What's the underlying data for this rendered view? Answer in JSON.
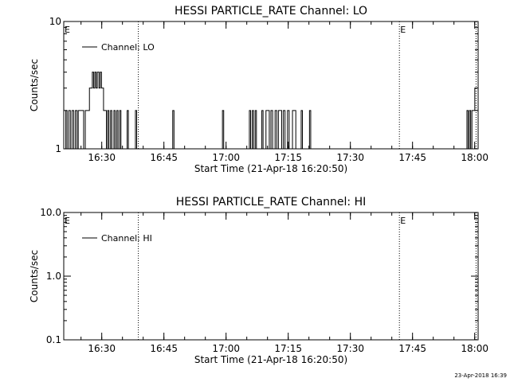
{
  "footer_timestamp": "23-Apr-2018 16:39",
  "chart_data": [
    {
      "type": "line",
      "title": "HESSI PARTICLE_RATE Channel: LO",
      "xlabel": "Start Time (21-Apr-18 16:20:50)",
      "ylabel": "Counts/sec",
      "x_unit": "minutes since 16:20:50",
      "xlim": [
        0,
        100
      ],
      "ylim": [
        1,
        10
      ],
      "yscale": "log",
      "x_ticks": [
        {
          "x": 9.17,
          "label": "16:30"
        },
        {
          "x": 24.17,
          "label": "16:45"
        },
        {
          "x": 39.17,
          "label": "17:00"
        },
        {
          "x": 54.17,
          "label": "17:15"
        },
        {
          "x": 69.17,
          "label": "17:30"
        },
        {
          "x": 84.17,
          "label": "17:45"
        },
        {
          "x": 99.17,
          "label": "18:00"
        }
      ],
      "y_ticks": [
        {
          "y": 1,
          "label": "1"
        },
        {
          "y": 10,
          "label": "10"
        }
      ],
      "event_lines": [
        {
          "x": 18.0,
          "label": "E"
        },
        {
          "x": 81.0,
          "label": "E"
        },
        {
          "x": 99.5,
          "label": ""
        }
      ],
      "axis_label_E": "E",
      "legend": {
        "position": "top-left",
        "entries": [
          "Channel: LO"
        ]
      },
      "series": [
        {
          "name": "Channel: LO",
          "points": [
            [
              0,
              1
            ],
            [
              0.5,
              2
            ],
            [
              0.8,
              1
            ],
            [
              1.2,
              2
            ],
            [
              1.6,
              1
            ],
            [
              2,
              2
            ],
            [
              2.4,
              1
            ],
            [
              2.8,
              2
            ],
            [
              3.2,
              1
            ],
            [
              3.5,
              2
            ],
            [
              4.5,
              2
            ],
            [
              4.8,
              1
            ],
            [
              5.2,
              2
            ],
            [
              6,
              2
            ],
            [
              6.2,
              3
            ],
            [
              6.6,
              3
            ],
            [
              6.9,
              4
            ],
            [
              7.2,
              3
            ],
            [
              7.5,
              4
            ],
            [
              7.8,
              3
            ],
            [
              8.1,
              4
            ],
            [
              8.5,
              3
            ],
            [
              8.8,
              4
            ],
            [
              9.1,
              3
            ],
            [
              9.4,
              3
            ],
            [
              9.6,
              2
            ],
            [
              10,
              2
            ],
            [
              10.3,
              1
            ],
            [
              10.6,
              2
            ],
            [
              10.9,
              1
            ],
            [
              11.3,
              2
            ],
            [
              11.6,
              1
            ],
            [
              12.1,
              2
            ],
            [
              12.4,
              1
            ],
            [
              12.8,
              2
            ],
            [
              13.1,
              1
            ],
            [
              13.5,
              2
            ],
            [
              13.8,
              1
            ],
            [
              15,
              1
            ],
            [
              15.3,
              2
            ],
            [
              15.6,
              1
            ],
            [
              17,
              1
            ],
            [
              17.3,
              2
            ],
            [
              17.6,
              1
            ],
            [
              26,
              1
            ],
            [
              26.3,
              2
            ],
            [
              26.6,
              1
            ],
            [
              38,
              1
            ],
            [
              38.3,
              2
            ],
            [
              38.6,
              1
            ],
            [
              44.5,
              1
            ],
            [
              44.8,
              2
            ],
            [
              45.1,
              1
            ],
            [
              45.5,
              2
            ],
            [
              45.8,
              1
            ],
            [
              46.2,
              2
            ],
            [
              46.5,
              1
            ],
            [
              47.5,
              1
            ],
            [
              47.8,
              2
            ],
            [
              48.1,
              1
            ],
            [
              48.8,
              2
            ],
            [
              49.2,
              2
            ],
            [
              49.6,
              1
            ],
            [
              50,
              2
            ],
            [
              50.4,
              1
            ],
            [
              51,
              2
            ],
            [
              51.4,
              1
            ],
            [
              51.8,
              2
            ],
            [
              52.2,
              2
            ],
            [
              52.6,
              1
            ],
            [
              53,
              2
            ],
            [
              53.4,
              1
            ],
            [
              54,
              2
            ],
            [
              54.4,
              1
            ],
            [
              55.2,
              2
            ],
            [
              55.6,
              2
            ],
            [
              56,
              1
            ],
            [
              57,
              1
            ],
            [
              57.3,
              2
            ],
            [
              57.6,
              1
            ],
            [
              59,
              1
            ],
            [
              59.3,
              2
            ],
            [
              59.6,
              1
            ],
            [
              97,
              1
            ],
            [
              97.3,
              2
            ],
            [
              97.6,
              1
            ],
            [
              97.9,
              2
            ],
            [
              98.2,
              1
            ],
            [
              98.5,
              2
            ],
            [
              98.9,
              2
            ],
            [
              99.2,
              3
            ],
            [
              99.5,
              3
            ]
          ]
        }
      ]
    },
    {
      "type": "line",
      "title": "HESSI PARTICLE_RATE Channel: HI",
      "xlabel": "Start Time (21-Apr-18 16:20:50)",
      "ylabel": "Counts/sec",
      "x_unit": "minutes since 16:20:50",
      "xlim": [
        0,
        100
      ],
      "ylim": [
        0.1,
        10
      ],
      "yscale": "log",
      "x_ticks": [
        {
          "x": 9.17,
          "label": "16:30"
        },
        {
          "x": 24.17,
          "label": "16:45"
        },
        {
          "x": 39.17,
          "label": "17:00"
        },
        {
          "x": 54.17,
          "label": "17:15"
        },
        {
          "x": 69.17,
          "label": "17:30"
        },
        {
          "x": 84.17,
          "label": "17:45"
        },
        {
          "x": 99.17,
          "label": "18:00"
        }
      ],
      "y_ticks": [
        {
          "y": 0.1,
          "label": "0.1"
        },
        {
          "y": 1,
          "label": "1.0"
        },
        {
          "y": 10,
          "label": "10.0"
        }
      ],
      "event_lines": [
        {
          "x": 18.0,
          "label": "E"
        },
        {
          "x": 81.0,
          "label": "E"
        },
        {
          "x": 99.5,
          "label": ""
        }
      ],
      "axis_label_E": "E",
      "legend": {
        "position": "top-left",
        "entries": [
          "Channel: HI"
        ]
      },
      "series": [
        {
          "name": "Channel: HI",
          "points": []
        }
      ]
    }
  ]
}
